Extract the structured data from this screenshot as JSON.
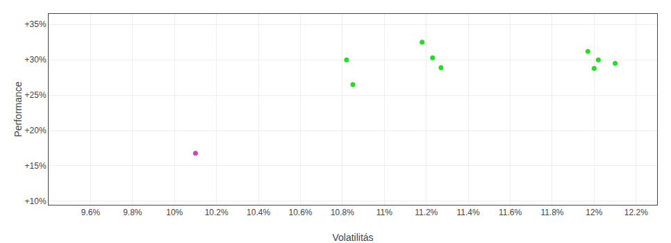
{
  "chart_data": {
    "type": "scatter",
    "xlabel": "Volatilitás",
    "ylabel": "Performance",
    "marker": "circle",
    "grid": true,
    "xlim": [
      0.094,
      0.123
    ],
    "ylim": [
      0.095,
      0.365
    ],
    "xticks": [
      {
        "value": 0.096,
        "label": "9.6%"
      },
      {
        "value": 0.098,
        "label": "9.8%"
      },
      {
        "value": 0.1,
        "label": "10%"
      },
      {
        "value": 0.102,
        "label": "10.2%"
      },
      {
        "value": 0.104,
        "label": "10.4%"
      },
      {
        "value": 0.106,
        "label": "10.6%"
      },
      {
        "value": 0.108,
        "label": "10.8%"
      },
      {
        "value": 0.11,
        "label": "11%"
      },
      {
        "value": 0.112,
        "label": "11.2%"
      },
      {
        "value": 0.114,
        "label": "11.4%"
      },
      {
        "value": 0.116,
        "label": "11.6%"
      },
      {
        "value": 0.118,
        "label": "11.8%"
      },
      {
        "value": 0.12,
        "label": "12%"
      },
      {
        "value": 0.122,
        "label": "12.2%"
      }
    ],
    "yticks": [
      {
        "value": 0.1,
        "label": "+10%"
      },
      {
        "value": 0.15,
        "label": "+15%"
      },
      {
        "value": 0.2,
        "label": "+20%"
      },
      {
        "value": 0.25,
        "label": "+25%"
      },
      {
        "value": 0.3,
        "label": "+30%"
      },
      {
        "value": 0.35,
        "label": "+35%"
      }
    ],
    "series": [
      {
        "color": "#22dd22",
        "x": [
          0.1082,
          0.1085,
          0.1118,
          0.1123,
          0.1127,
          0.1197,
          0.1202,
          0.12,
          0.121
        ],
        "values": [
          0.3,
          0.265,
          0.325,
          0.303,
          0.289,
          0.312,
          0.3,
          0.288,
          0.295
        ]
      },
      {
        "color": "#cc44cc",
        "x": [
          0.101
        ],
        "values": [
          0.168
        ]
      }
    ]
  }
}
